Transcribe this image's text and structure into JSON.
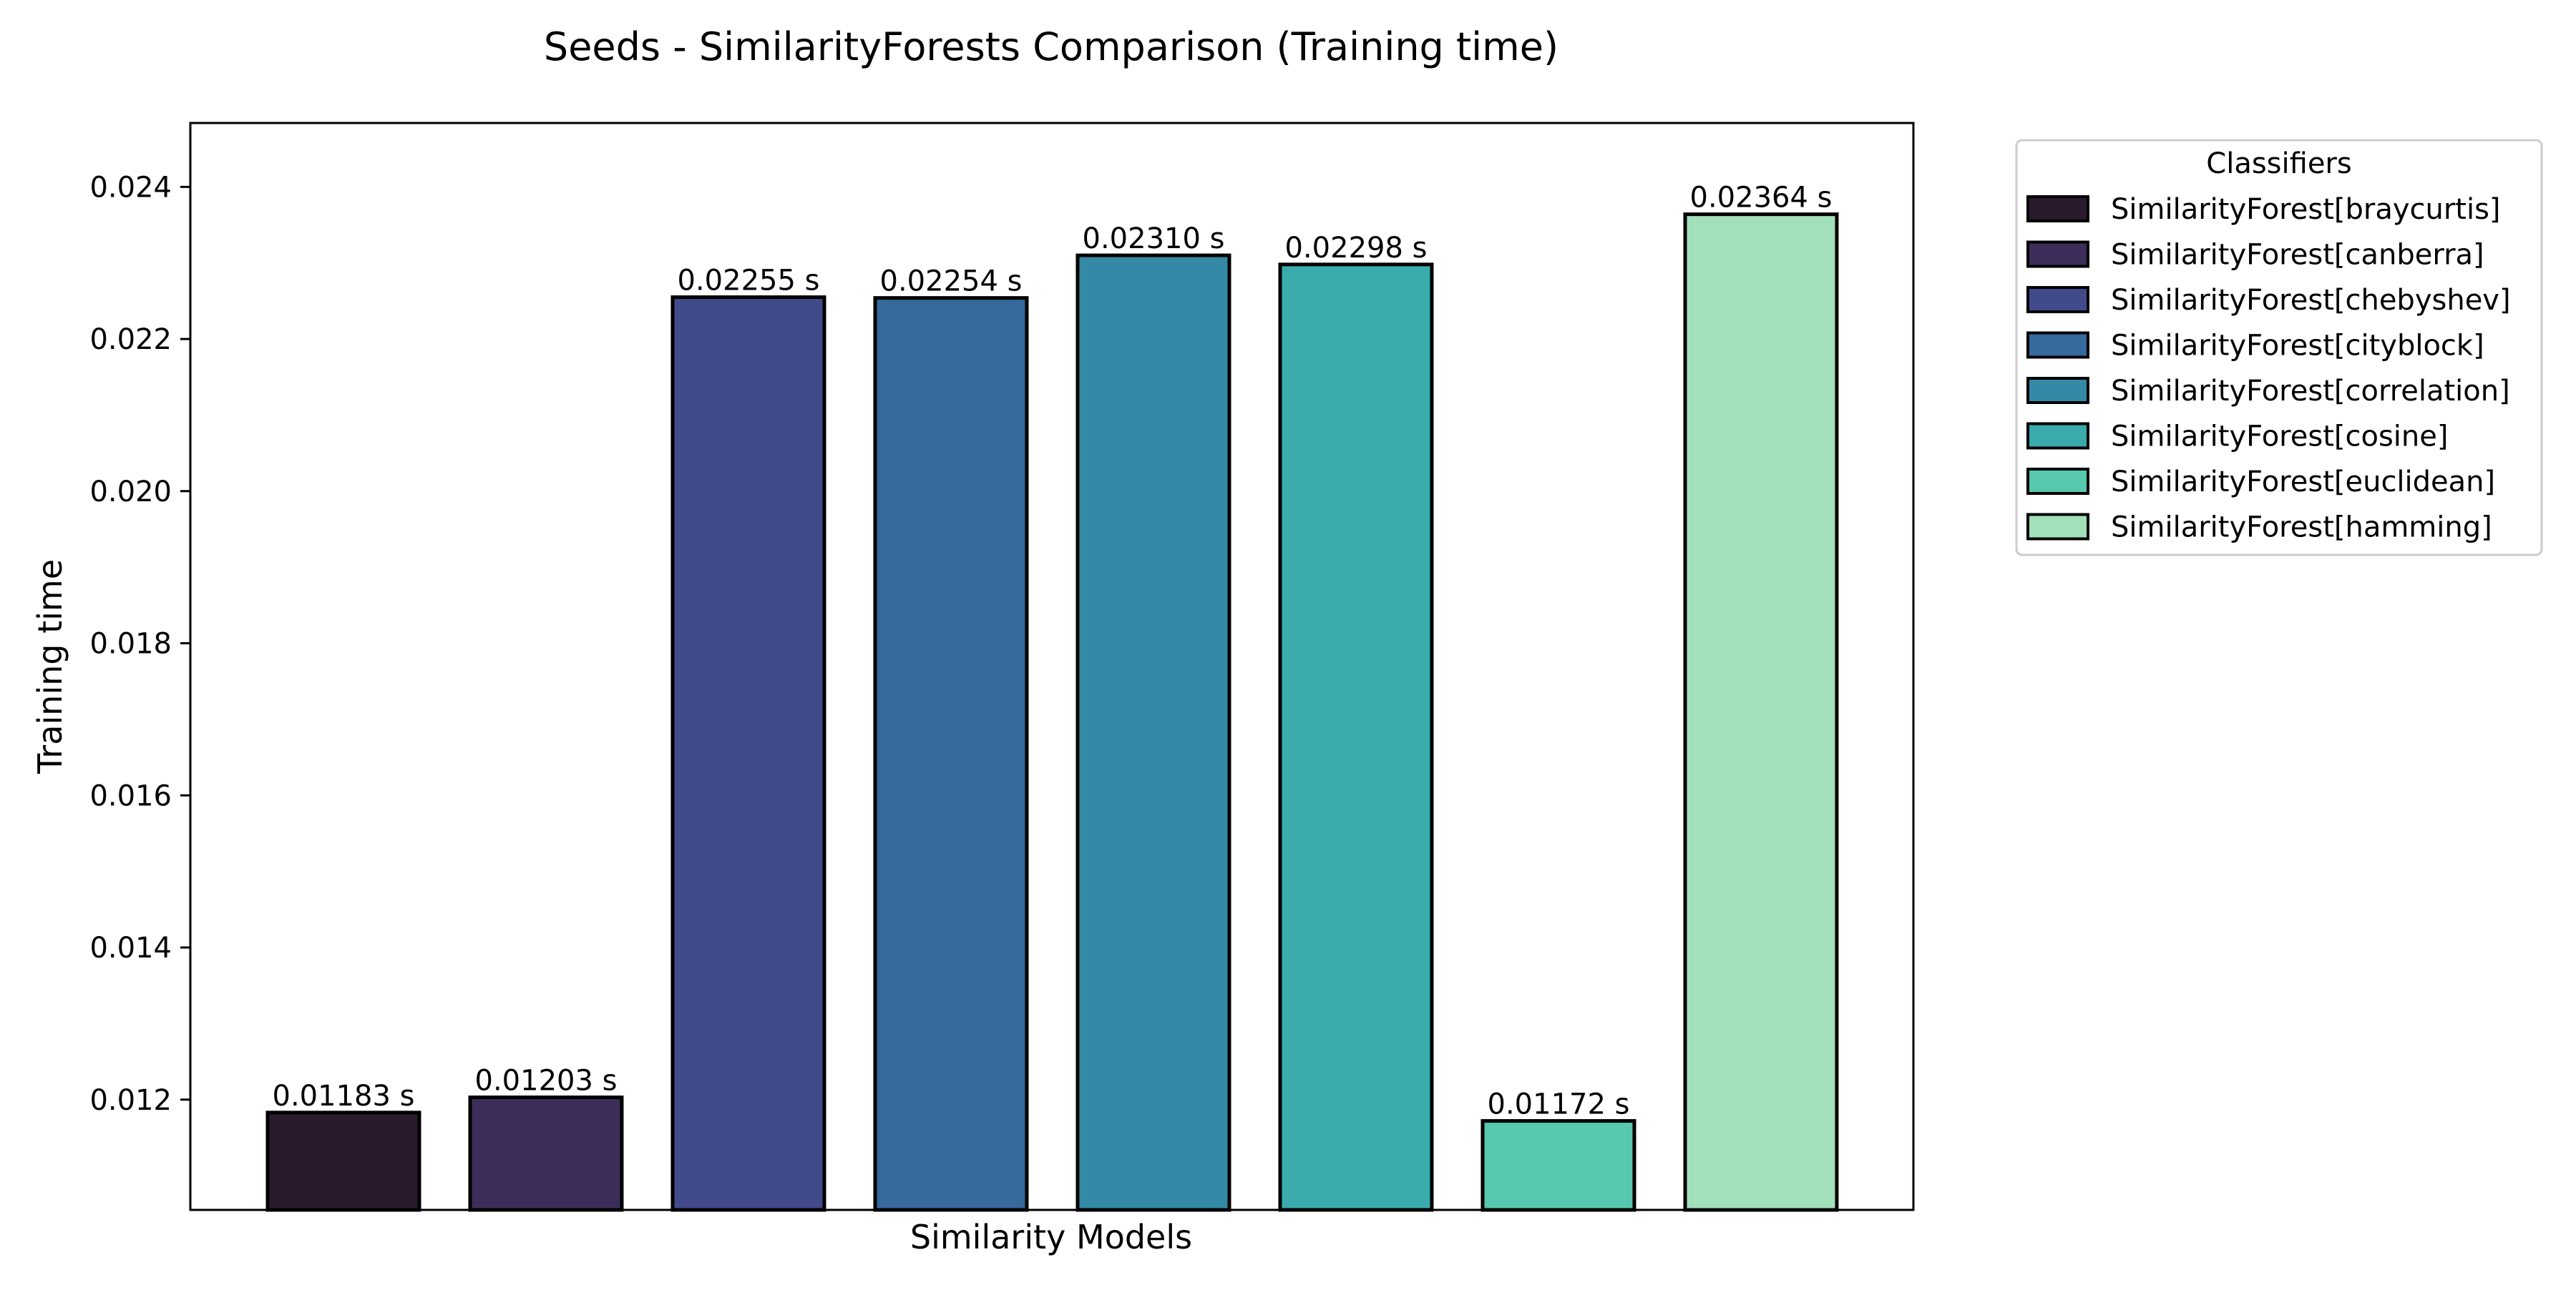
{
  "chart_data": {
    "type": "bar",
    "title": "Seeds - SimilarityForests Comparison (Training time)",
    "xlabel": "Similarity Models",
    "ylabel": "Training time",
    "ylim": [
      0.01055,
      0.02484
    ],
    "yticks": [
      0.012,
      0.014,
      0.016,
      0.018,
      0.02,
      0.022,
      0.024
    ],
    "ytick_labels": [
      "0.012",
      "0.014",
      "0.016",
      "0.018",
      "0.020",
      "0.022",
      "0.024"
    ],
    "grid": false,
    "legend": {
      "title": "Classifiers",
      "placement": "outside-top-right"
    },
    "value_suffix": " s",
    "series": [
      {
        "name": "SimilarityForest[braycurtis]",
        "value": 0.01183,
        "label": "0.01183 s",
        "color": "#2a1a2e"
      },
      {
        "name": "SimilarityForest[canberra]",
        "value": 0.01203,
        "label": "0.01203 s",
        "color": "#3c2d5a"
      },
      {
        "name": "SimilarityForest[chebyshev]",
        "value": 0.02255,
        "label": "0.02255 s",
        "color": "#414a8a"
      },
      {
        "name": "SimilarityForest[cityblock]",
        "value": 0.02254,
        "label": "0.02254 s",
        "color": "#36699c"
      },
      {
        "name": "SimilarityForest[correlation]",
        "value": 0.0231,
        "label": "0.02310 s",
        "color": "#348aa6"
      },
      {
        "name": "SimilarityForest[cosine]",
        "value": 0.02298,
        "label": "0.02298 s",
        "color": "#39abad"
      },
      {
        "name": "SimilarityForest[euclidean]",
        "value": 0.01172,
        "label": "0.01172 s",
        "color": "#56c8ad"
      },
      {
        "name": "SimilarityForest[hamming]",
        "value": 0.02364,
        "label": "0.02364 s",
        "color": "#a2e0b9"
      }
    ]
  }
}
